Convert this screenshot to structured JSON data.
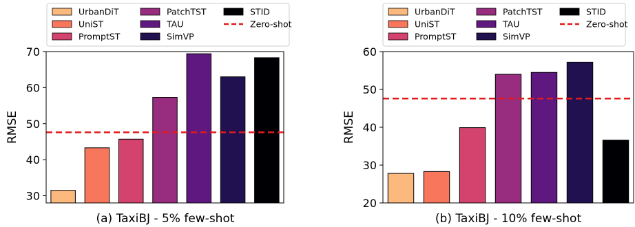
{
  "chart_data": [
    {
      "type": "bar",
      "title": "(a) TaxiBJ - 5% few-shot",
      "xlabel": "",
      "ylabel": "RMSE",
      "categories": [
        "UrbanDiT",
        "UniST",
        "PromptST",
        "PatchTST",
        "TAU",
        "SimVP",
        "STID"
      ],
      "values": [
        31.5,
        43.3,
        45.7,
        57.3,
        69.4,
        63.0,
        68.3
      ],
      "colors": [
        "#fcb97d",
        "#f8765c",
        "#d3436e",
        "#982d80",
        "#5f187f",
        "#221150",
        "#000004"
      ],
      "reference_line": {
        "name": "Zero-shot",
        "value": 47.6,
        "color": "#e31a1c",
        "style": "dashed"
      },
      "ylim": [
        28,
        70
      ],
      "yticks": [
        30,
        40,
        50,
        60,
        70
      ],
      "grid": false,
      "legend": {
        "placement": "top",
        "columns": 3,
        "entries": [
          "UrbanDiT",
          "UniST",
          "PromptST",
          "PatchTST",
          "TAU",
          "SimVP",
          "STID",
          "Zero-shot"
        ]
      }
    },
    {
      "type": "bar",
      "title": "(b) TaxiBJ - 10% few-shot",
      "xlabel": "",
      "ylabel": "RMSE",
      "categories": [
        "UrbanDiT",
        "UniST",
        "PromptST",
        "PatchTST",
        "TAU",
        "SimVP",
        "STID"
      ],
      "values": [
        27.8,
        28.3,
        39.9,
        54.0,
        54.5,
        57.2,
        36.6
      ],
      "colors": [
        "#fcb97d",
        "#f8765c",
        "#d3436e",
        "#982d80",
        "#5f187f",
        "#221150",
        "#000004"
      ],
      "reference_line": {
        "name": "Zero-shot",
        "value": 47.6,
        "color": "#e31a1c",
        "style": "dashed"
      },
      "ylim": [
        20,
        60
      ],
      "yticks": [
        20,
        30,
        40,
        50,
        60
      ],
      "grid": false,
      "legend": {
        "placement": "top",
        "columns": 3,
        "entries": [
          "UrbanDiT",
          "UniST",
          "PromptST",
          "PatchTST",
          "TAU",
          "SimVP",
          "STID",
          "Zero-shot"
        ]
      }
    }
  ]
}
